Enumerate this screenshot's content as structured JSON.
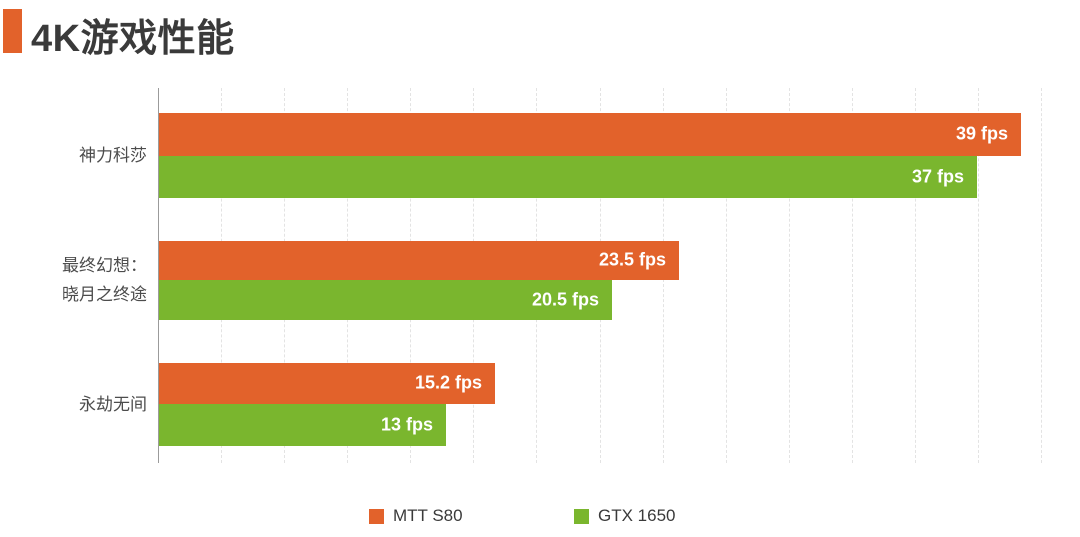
{
  "title": {
    "text": "4K游戏性能",
    "marker_color": "#e2622b"
  },
  "chart_data": {
    "type": "bar",
    "orientation": "horizontal",
    "title": "4K游戏性能",
    "xlabel": "",
    "ylabel": "",
    "xlim": [
      0,
      41.7
    ],
    "grid": "dashed-vertical-gridlines",
    "legend_position": "bottom",
    "value_suffix": " fps",
    "categories": [
      {
        "lines": [
          "神力科莎"
        ]
      },
      {
        "lines": [
          "最终幻想：",
          "晓月之终途"
        ]
      },
      {
        "lines": [
          "永劫无间"
        ]
      }
    ],
    "series": [
      {
        "name": "MTT S80",
        "color": "#e2622b",
        "values": [
          39,
          23.5,
          15.2
        ],
        "value_labels": [
          "39 fps",
          "23.5 fps",
          "15.2 fps"
        ]
      },
      {
        "name": "GTX 1650",
        "color": "#7ab62e",
        "values": [
          37,
          20.5,
          13
        ],
        "value_labels": [
          "37 fps",
          "20.5 fps",
          "13 fps"
        ]
      }
    ]
  },
  "legend": {
    "items": [
      {
        "label": "MTT S80",
        "color": "#e2622b"
      },
      {
        "label": "GTX 1650",
        "color": "#7ab62e"
      }
    ]
  }
}
